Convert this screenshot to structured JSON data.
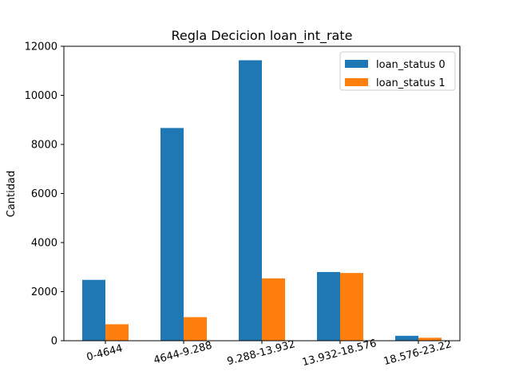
{
  "chart_data": {
    "type": "bar",
    "title": "Regla Decicion loan_int_rate",
    "xlabel": "",
    "ylabel": "Cantidad",
    "categories": [
      "0-4644",
      "4644-9.288",
      "9.288-13.932",
      "13.932-18.576",
      "18.576-23.22"
    ],
    "series": [
      {
        "name": "loan_status 0",
        "color": "#1f77b4",
        "values": [
          2480,
          8670,
          11430,
          2800,
          200
        ]
      },
      {
        "name": "loan_status 1",
        "color": "#ff7f0e",
        "values": [
          670,
          960,
          2540,
          2760,
          120
        ]
      }
    ],
    "ylim": [
      0,
      12000
    ],
    "yticks": [
      0,
      2000,
      4000,
      6000,
      8000,
      10000,
      12000
    ],
    "xtick_rotation": 15,
    "legend_position": "top-right",
    "grid": false
  }
}
